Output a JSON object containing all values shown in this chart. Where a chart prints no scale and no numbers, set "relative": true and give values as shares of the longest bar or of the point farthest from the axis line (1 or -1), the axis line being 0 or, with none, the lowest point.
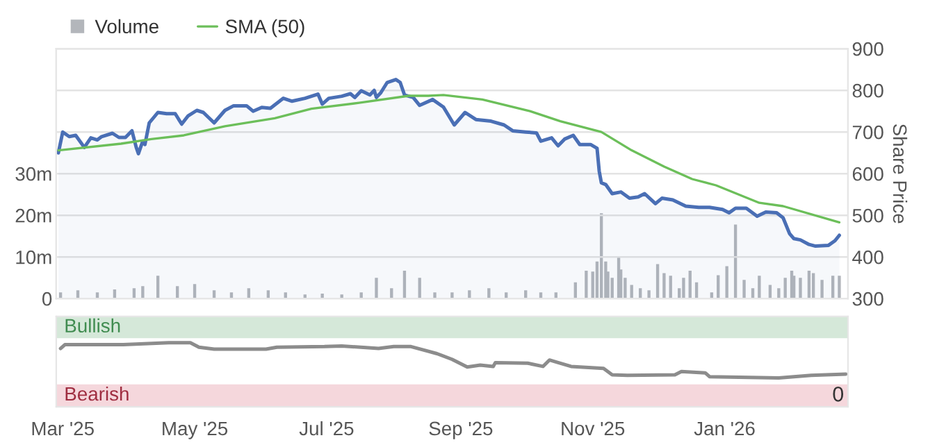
{
  "chart_data": [
    {
      "type": "line",
      "xlim": [
        "2025-02-26",
        "2026-02-27"
      ],
      "ylim": [
        0,
        60000000
      ],
      "yticks": [
        {
          "value": 0,
          "label": "0"
        },
        {
          "value": 10000000,
          "label": "10m"
        },
        {
          "value": 20000000,
          "label": "20m"
        },
        {
          "value": 30000000,
          "label": "30m"
        }
      ],
      "y2lim": [
        300,
        900
      ],
      "y2ticks": [
        300,
        400,
        500,
        600,
        700,
        800,
        900
      ],
      "y2label": "Share Price",
      "grid": "y",
      "legend": "top left",
      "tick_labels": "y",
      "series": [
        {
          "type": "bar",
          "name": "Volume",
          "color": "#b3b6bb",
          "axis": "y",
          "x": [
            "2025-02-28",
            "2025-03-08",
            "2025-03-17",
            "2025-03-25",
            "2025-04-03",
            "2025-04-07",
            "2025-04-14",
            "2025-04-23",
            "2025-05-01",
            "2025-05-10",
            "2025-05-18",
            "2025-05-26",
            "2025-06-04",
            "2025-06-12",
            "2025-06-21",
            "2025-06-29",
            "2025-07-08",
            "2025-07-17",
            "2025-07-24",
            "2025-07-31",
            "2025-08-06",
            "2025-08-13",
            "2025-08-20",
            "2025-08-28",
            "2025-09-05",
            "2025-09-14",
            "2025-09-22",
            "2025-10-01",
            "2025-10-08",
            "2025-10-15",
            "2025-10-24",
            "2025-10-29",
            "2025-11-01",
            "2025-11-03",
            "2025-11-05",
            "2025-11-07",
            "2025-11-08",
            "2025-11-10",
            "2025-11-13",
            "2025-11-14",
            "2025-11-16",
            "2025-11-19",
            "2025-11-23",
            "2025-11-27",
            "2025-12-01",
            "2025-12-04",
            "2025-12-07",
            "2025-12-11",
            "2025-12-13",
            "2025-12-16",
            "2025-12-19",
            "2025-12-26",
            "2025-12-29",
            "2026-01-02",
            "2026-01-06",
            "2026-01-10",
            "2026-01-14",
            "2026-01-17",
            "2026-01-22",
            "2026-01-26",
            "2026-01-29",
            "2026-02-01",
            "2026-02-02",
            "2026-02-05",
            "2026-02-09",
            "2026-02-11",
            "2026-02-15",
            "2026-02-20",
            "2026-02-23"
          ],
          "values": [
            1500000,
            2000000,
            1500000,
            2200000,
            2500000,
            3000000,
            5500000,
            3000000,
            3500000,
            2000000,
            1500000,
            2500000,
            2000000,
            1500000,
            1000000,
            1200000,
            1000000,
            1500000,
            5000000,
            2500000,
            6700000,
            5000000,
            1500000,
            1500000,
            2000000,
            2500000,
            1500000,
            2000000,
            1500000,
            1500000,
            3900000,
            6700000,
            6500000,
            8900000,
            20500000,
            8900000,
            6500000,
            5000000,
            10200000,
            7000000,
            5000000,
            3300000,
            2500000,
            2000000,
            8300000,
            6100000,
            5500000,
            2500000,
            5000000,
            6700000,
            3900000,
            1500000,
            5600000,
            7800000,
            17800000,
            4500000,
            2500000,
            5500000,
            3300000,
            2500000,
            5000000,
            6700000,
            5500000,
            5000000,
            6700000,
            6100000,
            4500000,
            5500000,
            5500000
          ]
        },
        {
          "type": "area",
          "color": "#4a6fb5",
          "axis": "y2",
          "x": [
            "2025-02-27",
            "2025-03-01",
            "2025-03-04",
            "2025-03-07",
            "2025-03-11",
            "2025-03-14",
            "2025-03-17",
            "2025-03-19",
            "2025-03-24",
            "2025-03-27",
            "2025-03-30",
            "2025-04-02",
            "2025-04-04",
            "2025-04-05",
            "2025-04-07",
            "2025-04-08",
            "2025-04-10",
            "2025-04-14",
            "2025-04-18",
            "2025-04-22",
            "2025-04-25",
            "2025-04-28",
            "2025-05-02",
            "2025-05-05",
            "2025-05-10",
            "2025-05-15",
            "2025-05-19",
            "2025-05-25",
            "2025-05-28",
            "2025-06-01",
            "2025-06-05",
            "2025-06-11",
            "2025-06-15",
            "2025-06-21",
            "2025-06-27",
            "2025-06-29",
            "2025-07-02",
            "2025-07-08",
            "2025-07-12",
            "2025-07-14",
            "2025-07-17",
            "2025-07-21",
            "2025-07-23",
            "2025-07-24",
            "2025-07-26",
            "2025-07-29",
            "2025-08-02",
            "2025-08-04",
            "2025-08-06",
            "2025-08-10",
            "2025-08-13",
            "2025-08-19",
            "2025-08-24",
            "2025-08-29",
            "2025-09-03",
            "2025-09-08",
            "2025-09-15",
            "2025-09-21",
            "2025-09-25",
            "2025-10-01",
            "2025-10-06",
            "2025-10-08",
            "2025-10-13",
            "2025-10-16",
            "2025-10-19",
            "2025-10-23",
            "2025-10-26",
            "2025-10-31",
            "2025-11-03",
            "2025-11-04",
            "2025-11-05",
            "2025-11-07",
            "2025-11-10",
            "2025-11-14",
            "2025-11-18",
            "2025-11-22",
            "2025-11-25",
            "2025-11-30",
            "2025-12-03",
            "2025-12-08",
            "2025-12-14",
            "2025-12-20",
            "2025-12-25",
            "2025-12-31",
            "2026-01-03",
            "2026-01-06",
            "2026-01-11",
            "2026-01-16",
            "2026-01-20",
            "2026-01-25",
            "2026-01-28",
            "2026-01-31",
            "2026-02-02",
            "2026-02-05",
            "2026-02-09",
            "2026-02-12",
            "2026-02-18",
            "2026-02-21",
            "2026-02-23"
          ],
          "values": [
            650,
            700,
            689,
            692,
            663,
            686,
            681,
            689,
            697,
            687,
            687,
            703,
            663,
            648,
            678,
            670,
            722,
            747,
            744,
            744,
            719,
            739,
            752,
            747,
            722,
            752,
            763,
            763,
            750,
            759,
            757,
            781,
            774,
            781,
            791,
            767,
            781,
            786,
            792,
            783,
            799,
            789,
            800,
            783,
            794,
            819,
            826,
            819,
            789,
            783,
            764,
            778,
            760,
            717,
            747,
            730,
            726,
            717,
            703,
            700,
            698,
            678,
            686,
            667,
            683,
            692,
            670,
            670,
            661,
            606,
            578,
            574,
            552,
            556,
            541,
            544,
            552,
            528,
            541,
            537,
            522,
            519,
            519,
            514,
            506,
            517,
            517,
            498,
            508,
            506,
            494,
            456,
            444,
            441,
            430,
            426,
            428,
            439,
            452
          ]
        },
        {
          "type": "line",
          "name": "SMA (50)",
          "color": "#6cbf5a",
          "axis": "y2",
          "x": [
            "2025-02-27",
            "2025-03-28",
            "2025-04-11",
            "2025-04-26",
            "2025-05-15",
            "2025-06-07",
            "2025-06-24",
            "2025-07-16",
            "2025-08-08",
            "2025-08-17",
            "2025-08-24",
            "2025-09-11",
            "2025-10-03",
            "2025-10-17",
            "2025-11-05",
            "2025-11-19",
            "2025-12-04",
            "2025-12-17",
            "2025-12-28",
            "2026-01-17",
            "2026-01-28",
            "2026-02-23"
          ],
          "values": [
            656,
            672,
            683,
            692,
            714,
            733,
            756,
            770,
            787,
            787,
            789,
            778,
            750,
            726,
            700,
            656,
            617,
            587,
            572,
            530,
            522,
            483
          ]
        }
      ]
    },
    {
      "type": "line",
      "relative": true,
      "xlim": [
        "2025-02-26",
        "2026-02-27"
      ],
      "xticks": [
        {
          "value": "2025-03-01",
          "label": "Mar '25"
        },
        {
          "value": "2025-05-01",
          "label": "May '25"
        },
        {
          "value": "2025-07-01",
          "label": "Jul '25"
        },
        {
          "value": "2025-09-01",
          "label": "Sep '25"
        },
        {
          "value": "2025-11-01",
          "label": "Nov '25"
        },
        {
          "value": "2026-01-01",
          "label": "Jan '26"
        }
      ],
      "tick_labels": "x",
      "bands": [
        {
          "axis": "y",
          "from": 1.07,
          "to": 1.41,
          "label": "Bullish",
          "color": "#d5e8d9"
        },
        {
          "axis": "y",
          "from": 0,
          "to": 0.35,
          "label": "Bearish",
          "color": "#f5d7dc"
        }
      ],
      "annotations": [
        "0"
      ],
      "series": [
        {
          "color": "#8c8c8c",
          "x": [
            "2025-02-28",
            "2025-03-02",
            "2025-03-16",
            "2025-03-29",
            "2025-04-19",
            "2025-04-29",
            "2025-05-03",
            "2025-05-10",
            "2025-06-03",
            "2025-06-08",
            "2025-06-30",
            "2025-07-08",
            "2025-07-25",
            "2025-08-01",
            "2025-08-09",
            "2025-08-21",
            "2025-08-28",
            "2025-09-04",
            "2025-09-10",
            "2025-09-16",
            "2025-09-17",
            "2025-10-02",
            "2025-10-09",
            "2025-10-12",
            "2025-10-16",
            "2025-10-22",
            "2025-11-06",
            "2025-11-10",
            "2025-11-17",
            "2025-12-09",
            "2025-12-12",
            "2025-12-23",
            "2025-12-25",
            "2026-01-26",
            "2026-02-10",
            "2026-02-26"
          ],
          "values": [
            0.91,
            0.97,
            0.97,
            0.97,
            1.0,
            1.0,
            0.93,
            0.9,
            0.9,
            0.93,
            0.94,
            0.95,
            0.91,
            0.94,
            0.94,
            0.83,
            0.74,
            0.62,
            0.65,
            0.63,
            0.69,
            0.68,
            0.63,
            0.73,
            0.69,
            0.63,
            0.6,
            0.5,
            0.49,
            0.5,
            0.55,
            0.53,
            0.47,
            0.45,
            0.49,
            0.51
          ]
        }
      ]
    }
  ]
}
